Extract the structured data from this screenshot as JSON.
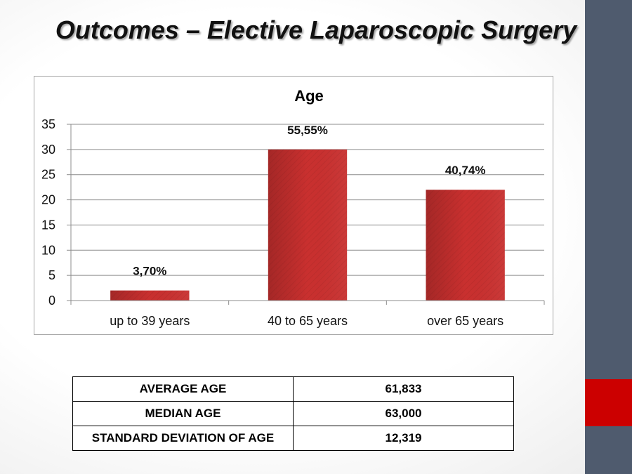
{
  "slide": {
    "title": "Outcomes – Elective Laparoscopic Surgery"
  },
  "colors": {
    "bar": "#c9302f",
    "sidebar": "#4f5b6e",
    "accent": "#cc0000"
  },
  "chart_data": {
    "type": "bar",
    "title": "Age",
    "categories": [
      "up to 39 years",
      "40 to 65 years",
      "over 65 years"
    ],
    "values": [
      2,
      30,
      22
    ],
    "data_labels": [
      "3,70%",
      "55,55%",
      "40,74%"
    ],
    "y_ticks": [
      "0",
      "5",
      "10",
      "15",
      "20",
      "25",
      "30",
      "35"
    ],
    "ylim": [
      0,
      35
    ],
    "y_step": 5,
    "grid": true,
    "legend": "none"
  },
  "stats_table": {
    "rows": [
      {
        "label": "AVERAGE AGE",
        "value": "61,833"
      },
      {
        "label": "MEDIAN AGE",
        "value": "63,000"
      },
      {
        "label": "STANDARD DEVIATION OF AGE",
        "value": "12,319"
      }
    ]
  }
}
